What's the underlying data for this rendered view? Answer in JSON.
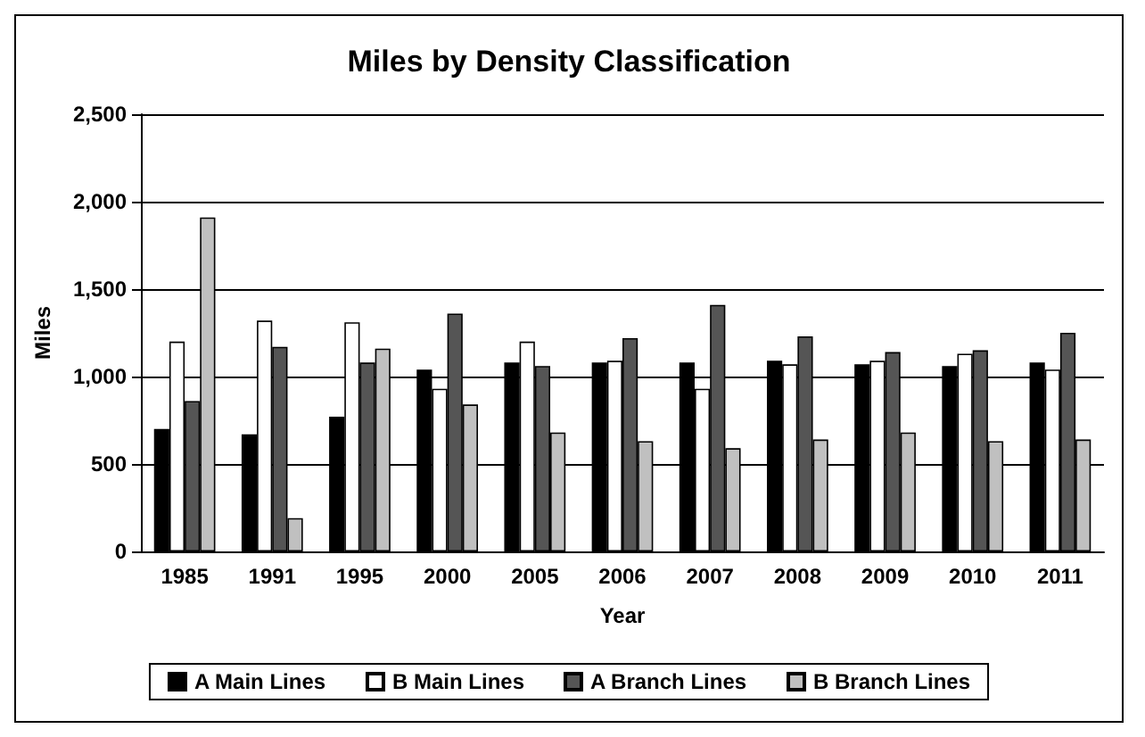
{
  "chart_data": {
    "type": "bar",
    "title": "Miles by Density Classification",
    "xlabel": "Year",
    "ylabel": "Miles",
    "categories": [
      "1985",
      "1991",
      "1995",
      "2000",
      "2005",
      "2006",
      "2007",
      "2008",
      "2009",
      "2010",
      "2011"
    ],
    "series": [
      {
        "name": "A Main Lines",
        "color": "#000000",
        "values": [
          700,
          670,
          770,
          1040,
          1080,
          1080,
          1080,
          1090,
          1070,
          1060,
          1080
        ]
      },
      {
        "name": "B Main Lines",
        "color": "#ffffff",
        "values": [
          1200,
          1320,
          1310,
          930,
          1200,
          1090,
          930,
          1070,
          1090,
          1130,
          1040
        ]
      },
      {
        "name": "A Branch Lines",
        "color": "#555555",
        "values": [
          860,
          1170,
          1080,
          1360,
          1060,
          1220,
          1410,
          1230,
          1140,
          1150,
          1250
        ]
      },
      {
        "name": "B Branch Lines",
        "color": "#c0c0c0",
        "values": [
          1910,
          190,
          1160,
          840,
          680,
          630,
          590,
          640,
          680,
          630,
          640
        ]
      }
    ],
    "ylim": [
      0,
      2500
    ],
    "yticks": [
      0,
      500,
      {
        "value": 1000,
        "label": "1,000"
      },
      {
        "value": 1500,
        "label": "1,500"
      },
      {
        "value": 2000,
        "label": "2,000"
      },
      {
        "value": 2500,
        "label": "2,500"
      }
    ],
    "grid": "y",
    "legend": "bottom"
  }
}
